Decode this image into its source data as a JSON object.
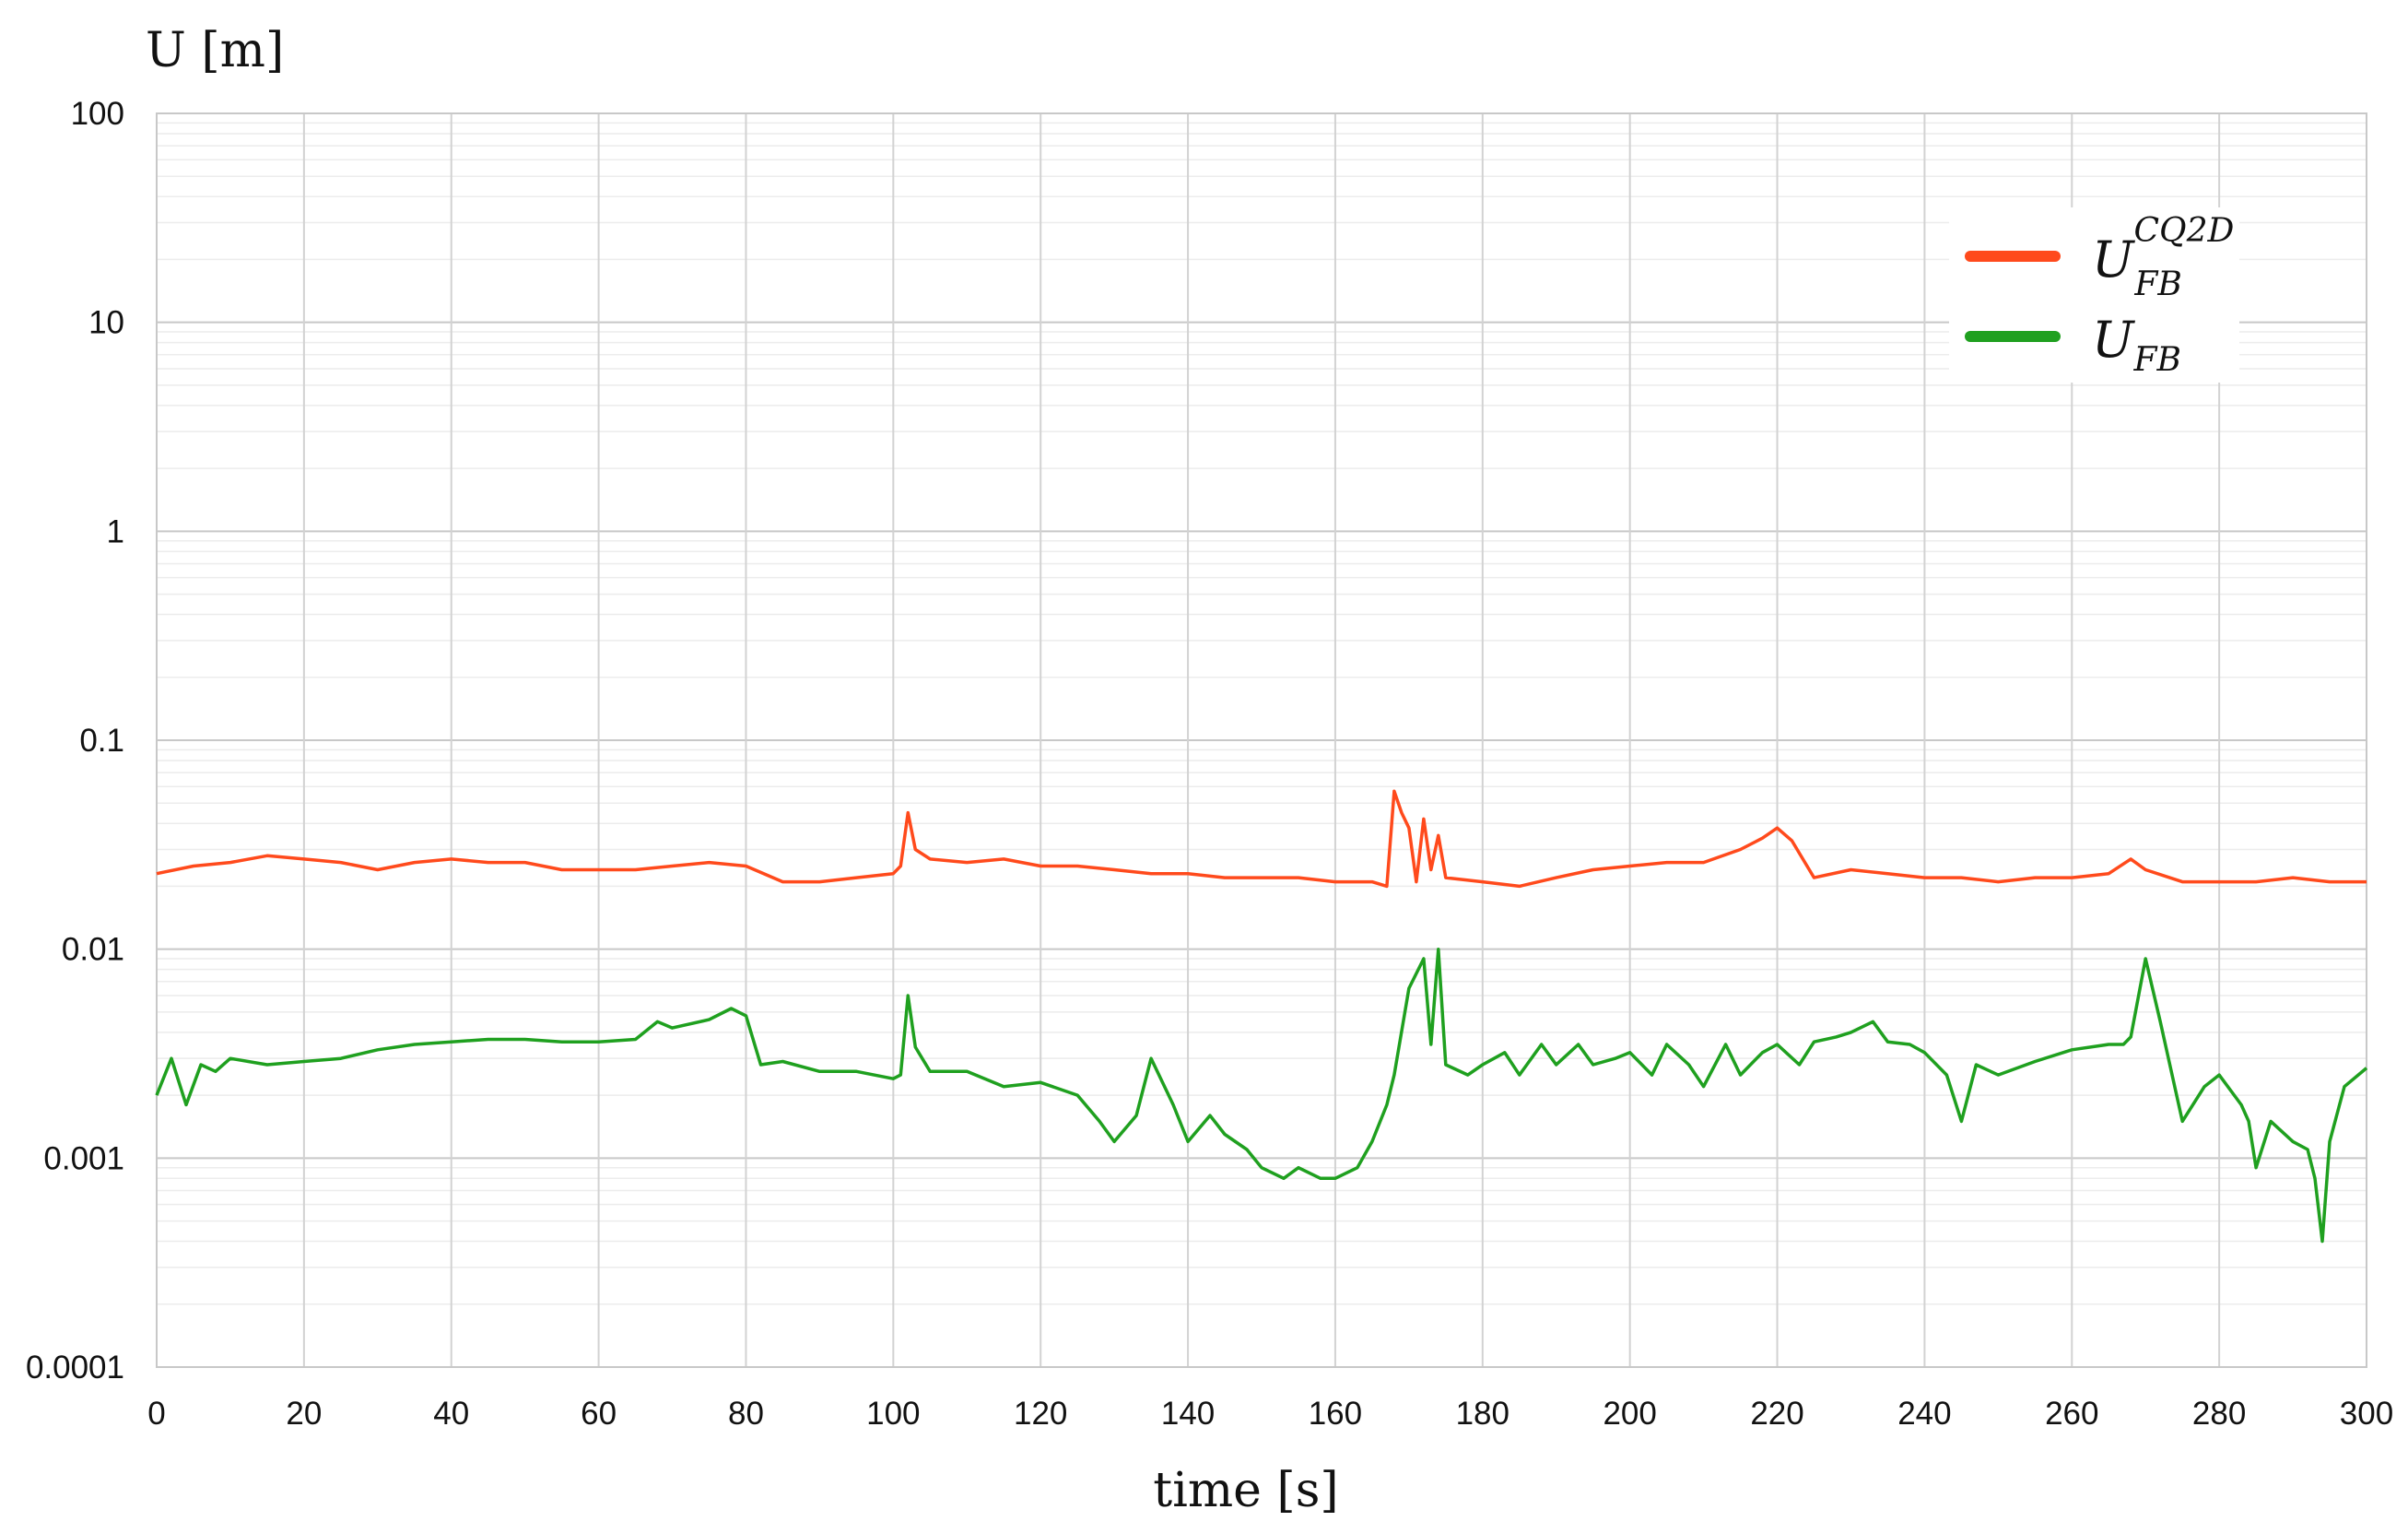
{
  "chart_data": {
    "type": "line",
    "ylabel": "U [m]",
    "xlabel": "time [s]",
    "yscale": "log",
    "ylim": [
      0.0001,
      100
    ],
    "xlim": [
      0,
      300
    ],
    "x_ticks": [
      0,
      20,
      40,
      60,
      80,
      100,
      120,
      140,
      160,
      180,
      200,
      220,
      240,
      260,
      280,
      300
    ],
    "y_ticks": [
      "0.0001",
      "0.001",
      "0.01",
      "0.1",
      "1",
      "10",
      "100"
    ],
    "grid": true,
    "legend_position": "top-right",
    "series": [
      {
        "name": "U_FB^CQ2D",
        "label_main": "U",
        "label_sub": "FB",
        "label_sup": "CQ2D",
        "color": "#ff4a1c",
        "x": [
          0,
          5,
          10,
          15,
          20,
          25,
          30,
          35,
          40,
          45,
          50,
          55,
          60,
          65,
          70,
          75,
          80,
          85,
          90,
          95,
          100,
          101,
          102,
          103,
          105,
          110,
          115,
          120,
          125,
          130,
          135,
          140,
          145,
          150,
          155,
          160,
          165,
          167,
          168,
          169,
          170,
          171,
          172,
          173,
          174,
          175,
          180,
          185,
          190,
          195,
          200,
          205,
          210,
          215,
          218,
          220,
          222,
          225,
          230,
          235,
          240,
          245,
          250,
          255,
          260,
          265,
          268,
          270,
          275,
          280,
          285,
          290,
          295,
          300
        ],
        "values": [
          0.023,
          0.025,
          0.026,
          0.028,
          0.027,
          0.026,
          0.024,
          0.026,
          0.027,
          0.026,
          0.026,
          0.024,
          0.024,
          0.024,
          0.025,
          0.026,
          0.025,
          0.021,
          0.021,
          0.022,
          0.023,
          0.025,
          0.045,
          0.03,
          0.027,
          0.026,
          0.027,
          0.025,
          0.025,
          0.024,
          0.023,
          0.023,
          0.022,
          0.022,
          0.022,
          0.021,
          0.021,
          0.02,
          0.057,
          0.045,
          0.038,
          0.021,
          0.042,
          0.024,
          0.035,
          0.022,
          0.021,
          0.02,
          0.022,
          0.024,
          0.025,
          0.026,
          0.026,
          0.03,
          0.034,
          0.038,
          0.033,
          0.022,
          0.024,
          0.023,
          0.022,
          0.022,
          0.021,
          0.022,
          0.022,
          0.023,
          0.027,
          0.024,
          0.021,
          0.021,
          0.021,
          0.022,
          0.021,
          0.021
        ]
      },
      {
        "name": "U_FB",
        "label_main": "U",
        "label_sub": "FB",
        "color": "#1fa01f",
        "x": [
          0,
          2,
          4,
          6,
          8,
          10,
          15,
          20,
          25,
          30,
          35,
          40,
          45,
          50,
          55,
          60,
          65,
          68,
          70,
          75,
          78,
          80,
          82,
          85,
          90,
          95,
          100,
          101,
          102,
          103,
          105,
          110,
          115,
          120,
          125,
          128,
          130,
          133,
          135,
          138,
          140,
          143,
          145,
          148,
          150,
          153,
          155,
          158,
          160,
          163,
          165,
          167,
          168,
          170,
          172,
          173,
          174,
          175,
          178,
          180,
          183,
          185,
          188,
          190,
          193,
          195,
          198,
          200,
          203,
          205,
          208,
          210,
          213,
          215,
          218,
          220,
          223,
          225,
          228,
          230,
          233,
          235,
          238,
          240,
          243,
          245,
          247,
          250,
          255,
          260,
          265,
          267,
          268,
          270,
          272,
          275,
          278,
          280,
          283,
          284,
          285,
          287,
          290,
          292,
          293,
          294,
          295,
          297,
          300
        ],
        "values": [
          0.002,
          0.003,
          0.0018,
          0.0028,
          0.0026,
          0.003,
          0.0028,
          0.0029,
          0.003,
          0.0033,
          0.0035,
          0.0036,
          0.0037,
          0.0037,
          0.0036,
          0.0036,
          0.0037,
          0.0045,
          0.0042,
          0.0046,
          0.0052,
          0.0048,
          0.0028,
          0.0029,
          0.0026,
          0.0026,
          0.0024,
          0.0025,
          0.006,
          0.0034,
          0.0026,
          0.0026,
          0.0022,
          0.0023,
          0.002,
          0.0015,
          0.0012,
          0.0016,
          0.003,
          0.0018,
          0.0012,
          0.0016,
          0.0013,
          0.0011,
          0.0009,
          0.0008,
          0.0009,
          0.0008,
          0.0008,
          0.0009,
          0.0012,
          0.0018,
          0.0025,
          0.0065,
          0.009,
          0.0035,
          0.01,
          0.0028,
          0.0025,
          0.0028,
          0.0032,
          0.0025,
          0.0035,
          0.0028,
          0.0035,
          0.0028,
          0.003,
          0.0032,
          0.0025,
          0.0035,
          0.0028,
          0.0022,
          0.0035,
          0.0025,
          0.0032,
          0.0035,
          0.0028,
          0.0036,
          0.0038,
          0.004,
          0.0045,
          0.0036,
          0.0035,
          0.0032,
          0.0025,
          0.0015,
          0.0028,
          0.0025,
          0.0029,
          0.0033,
          0.0035,
          0.0035,
          0.0038,
          0.009,
          0.0045,
          0.0015,
          0.0022,
          0.0025,
          0.0018,
          0.0015,
          0.0009,
          0.0015,
          0.0012,
          0.0011,
          0.0008,
          0.0004,
          0.0012,
          0.0022,
          0.0027
        ]
      }
    ]
  }
}
